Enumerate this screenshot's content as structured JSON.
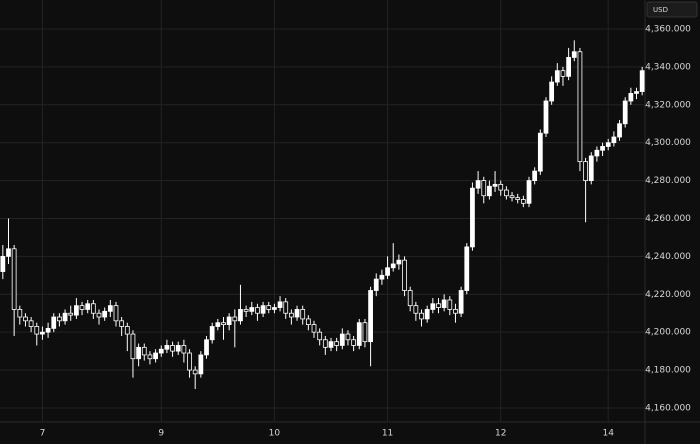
{
  "chart_data": {
    "type": "candlestick",
    "unit": "USD",
    "categories": [
      null,
      null,
      null,
      null,
      null,
      null,
      null,
      "7",
      null,
      null,
      null,
      null,
      null,
      null,
      null,
      null,
      null,
      null,
      null,
      null,
      null,
      null,
      null,
      null,
      null,
      null,
      null,
      null,
      "9",
      null,
      null,
      null,
      null,
      null,
      null,
      null,
      null,
      null,
      null,
      null,
      null,
      null,
      null,
      null,
      null,
      null,
      null,
      null,
      "10",
      null,
      null,
      null,
      null,
      null,
      null,
      null,
      null,
      null,
      null,
      null,
      null,
      null,
      null,
      null,
      null,
      null,
      null,
      null,
      "11",
      null,
      null,
      null,
      null,
      null,
      null,
      null,
      null,
      null,
      null,
      null,
      null,
      null,
      null,
      null,
      null,
      null,
      null,
      null,
      "12",
      null,
      null,
      null,
      null,
      null,
      null,
      null,
      null,
      null,
      null,
      null,
      null,
      null,
      null,
      null,
      null,
      null,
      null,
      "14",
      null,
      null,
      null,
      null,
      null,
      null
    ],
    "open": [
      4232,
      4240,
      4244,
      4212,
      4208,
      4206,
      4203,
      4199,
      4200,
      4202,
      4208,
      4206,
      4210,
      4209,
      4214,
      4212,
      4215,
      4210,
      4208,
      4211,
      4214,
      4206,
      4203,
      4199,
      4186,
      4192,
      4188,
      4186,
      4189,
      4191,
      4193,
      4190,
      4193,
      4189,
      4180,
      4178,
      4188,
      4196,
      4203,
      4205,
      4204,
      4208,
      4206,
      4212,
      4211,
      4213,
      4210,
      4214,
      4212,
      4213,
      4216,
      4210,
      4208,
      4212,
      4207,
      4204,
      4200,
      4196,
      4192,
      4195,
      4193,
      4199,
      4196,
      4193,
      4205,
      4195,
      4222,
      4228,
      4230,
      4234,
      4236,
      4238,
      4222,
      4214,
      4210,
      4207,
      4212,
      4215,
      4213,
      4217,
      4212,
      4210,
      4222,
      4245,
      4276,
      4280,
      4272,
      4277,
      4278,
      4275,
      4272,
      4271,
      4270,
      4268,
      4280,
      4285,
      4305,
      4322,
      4332,
      4338,
      4335,
      4345,
      4348,
      4290,
      4280,
      4293,
      4296,
      4298,
      4300,
      4303,
      4310,
      4322,
      4326,
      4327
    ],
    "high": [
      4246,
      4260,
      4246,
      4214,
      4210,
      4208,
      4205,
      4203,
      4205,
      4210,
      4210,
      4212,
      4214,
      4218,
      4216,
      4217,
      4217,
      4212,
      4213,
      4217,
      4216,
      4208,
      4205,
      4201,
      4194,
      4194,
      4190,
      4191,
      4193,
      4196,
      4195,
      4195,
      4196,
      4191,
      4182,
      4190,
      4198,
      4205,
      4207,
      4208,
      4210,
      4212,
      4225,
      4214,
      4216,
      4215,
      4216,
      4216,
      4215,
      4219,
      4218,
      4212,
      4214,
      4214,
      4209,
      4206,
      4202,
      4198,
      4197,
      4197,
      4202,
      4201,
      4198,
      4207,
      4207,
      4224,
      4231,
      4233,
      4240,
      4247,
      4241,
      4240,
      4224,
      4216,
      4212,
      4214,
      4218,
      4218,
      4220,
      4219,
      4215,
      4224,
      4247,
      4279,
      4285,
      4282,
      4280,
      4285,
      4280,
      4277,
      4274,
      4273,
      4272,
      4282,
      4287,
      4307,
      4324,
      4335,
      4342,
      4340,
      4350,
      4354,
      4350,
      4292,
      4295,
      4298,
      4300,
      4302,
      4306,
      4312,
      4324,
      4329,
      4329,
      4340
    ],
    "low": [
      4228,
      4236,
      4198,
      4204,
      4203,
      4200,
      4193,
      4196,
      4197,
      4200,
      4203,
      4204,
      4206,
      4207,
      4209,
      4210,
      4207,
      4204,
      4206,
      4208,
      4203,
      4198,
      4190,
      4176,
      4182,
      4185,
      4183,
      4184,
      4187,
      4189,
      4187,
      4188,
      4184,
      4176,
      4170,
      4176,
      4186,
      4194,
      4201,
      4196,
      4201,
      4192,
      4204,
      4208,
      4209,
      4206,
      4208,
      4210,
      4210,
      4211,
      4207,
      4204,
      4206,
      4204,
      4201,
      4197,
      4193,
      4188,
      4190,
      4190,
      4191,
      4193,
      4190,
      4191,
      4192,
      4182,
      4219,
      4225,
      4228,
      4232,
      4233,
      4219,
      4211,
      4206,
      4203,
      4205,
      4210,
      4210,
      4211,
      4209,
      4205,
      4208,
      4220,
      4243,
      4273,
      4268,
      4270,
      4274,
      4272,
      4270,
      4269,
      4268,
      4266,
      4266,
      4278,
      4283,
      4303,
      4320,
      4330,
      4330,
      4333,
      4343,
      4285,
      4258,
      4278,
      4290,
      4293,
      4296,
      4298,
      4301,
      4308,
      4320,
      4323,
      4325
    ],
    "close": [
      4240,
      4244,
      4212,
      4208,
      4206,
      4203,
      4199,
      4200,
      4202,
      4208,
      4206,
      4210,
      4209,
      4214,
      4212,
      4215,
      4210,
      4208,
      4211,
      4214,
      4206,
      4203,
      4199,
      4186,
      4192,
      4188,
      4186,
      4189,
      4191,
      4193,
      4190,
      4193,
      4189,
      4180,
      4178,
      4188,
      4196,
      4203,
      4205,
      4204,
      4208,
      4206,
      4212,
      4211,
      4213,
      4210,
      4214,
      4212,
      4213,
      4216,
      4210,
      4208,
      4212,
      4207,
      4204,
      4200,
      4196,
      4192,
      4195,
      4193,
      4199,
      4196,
      4193,
      4205,
      4195,
      4222,
      4228,
      4230,
      4234,
      4236,
      4238,
      4222,
      4214,
      4210,
      4207,
      4212,
      4215,
      4213,
      4217,
      4212,
      4210,
      4222,
      4245,
      4276,
      4280,
      4272,
      4277,
      4278,
      4275,
      4272,
      4271,
      4270,
      4268,
      4280,
      4285,
      4305,
      4322,
      4332,
      4338,
      4335,
      4345,
      4348,
      4290,
      4280,
      4293,
      4296,
      4298,
      4300,
      4303,
      4310,
      4322,
      4326,
      4327,
      4338
    ],
    "up_color": "#ffffff",
    "down_color": "#0e0e0e",
    "ylim": [
      4152.6,
      4375.3
    ],
    "yticks": [
      {
        "value": 4160,
        "label": "4,160.000"
      },
      {
        "value": 4180,
        "label": "4,180.000"
      },
      {
        "value": 4200,
        "label": "4,200.000"
      },
      {
        "value": 4220,
        "label": "4,220.000"
      },
      {
        "value": 4240,
        "label": "4,240.000"
      },
      {
        "value": 4260,
        "label": "4,260.000"
      },
      {
        "value": 4280,
        "label": "4,280.000"
      },
      {
        "value": 4300,
        "label": "4,300.000"
      },
      {
        "value": 4320,
        "label": "4,320.000"
      },
      {
        "value": 4340,
        "label": "4,340.000"
      },
      {
        "value": 4360,
        "label": "4,360.000"
      }
    ],
    "grid": true
  }
}
